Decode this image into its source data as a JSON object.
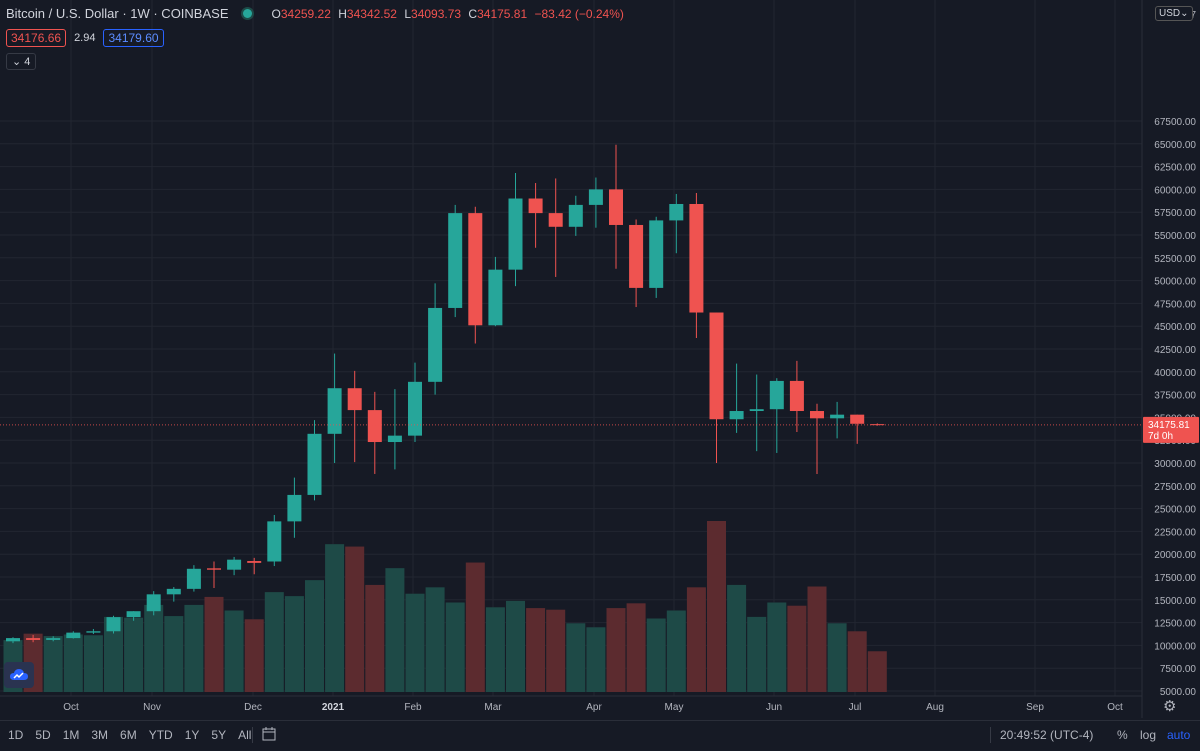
{
  "header": {
    "symbol": "Bitcoin / U.S. Dollar · 1W · COINBASE",
    "open_key": "O",
    "open": "34259.22",
    "high_key": "H",
    "high": "34342.52",
    "low_key": "L",
    "low": "34093.73",
    "close_key": "C",
    "close": "34175.81",
    "change": "−83.42 (−0.24%)"
  },
  "quote": {
    "bid": "34176.66",
    "spread": "2.94",
    "ask": "34179.60"
  },
  "indicators_toggle": "4",
  "currency": "USD",
  "last_price": {
    "value": "34175.81",
    "countdown": "7d 0h"
  },
  "bottom_bar": {
    "ranges": [
      "1D",
      "5D",
      "1M",
      "3M",
      "6M",
      "YTD",
      "1Y",
      "5Y",
      "All"
    ],
    "time": "20:49:52 (UTC-4)",
    "percent": "%",
    "log": "log",
    "auto": "auto"
  },
  "colors": {
    "up": "#26a69a",
    "down": "#ef5350",
    "vol_up": "#1e4a47",
    "vol_down": "#5c2b2f",
    "background": "#161a25",
    "grid": "#222631"
  },
  "chart_data": {
    "type": "candlestick",
    "title": "Bitcoin / U.S. Dollar",
    "interval": "1W",
    "exchange": "COINBASE",
    "price_axis": {
      "ticks": [
        "7",
        "67500.00",
        "65000.00",
        "62500.00",
        "60000.00",
        "57500.00",
        "55000.00",
        "52500.00",
        "50000.00",
        "47500.00",
        "45000.00",
        "42500.00",
        "40000.00",
        "37500.00",
        "35000.00",
        "32500.00",
        "30000.00",
        "27500.00",
        "25000.00",
        "22500.00",
        "20000.00",
        "17500.00",
        "15000.00",
        "12500.00",
        "10000.00",
        "7500.00",
        "5000.00"
      ]
    },
    "time_axis": [
      "Oct",
      "Nov",
      "Dec",
      "2021",
      "Feb",
      "Mar",
      "Apr",
      "May",
      "Jun",
      "Jul",
      "Aug",
      "Sep",
      "Oct"
    ],
    "candles": [
      {
        "o": 10450,
        "h": 10900,
        "l": 10250,
        "c": 10800,
        "v": 6500
      },
      {
        "o": 10800,
        "h": 11150,
        "l": 10350,
        "c": 10600,
        "v": 7300
      },
      {
        "o": 10600,
        "h": 11000,
        "l": 10450,
        "c": 10800,
        "v": 7000
      },
      {
        "o": 10800,
        "h": 11550,
        "l": 10750,
        "c": 11400,
        "v": 7200
      },
      {
        "o": 11400,
        "h": 11800,
        "l": 11250,
        "c": 11550,
        "v": 7100
      },
      {
        "o": 11550,
        "h": 13250,
        "l": 11300,
        "c": 13100,
        "v": 9400
      },
      {
        "o": 13100,
        "h": 13750,
        "l": 12700,
        "c": 13750,
        "v": 9300
      },
      {
        "o": 13750,
        "h": 15950,
        "l": 13300,
        "c": 15600,
        "v": 10900
      },
      {
        "o": 15600,
        "h": 16400,
        "l": 14800,
        "c": 16200,
        "v": 9500
      },
      {
        "o": 16200,
        "h": 18800,
        "l": 15900,
        "c": 18400,
        "v": 10900
      },
      {
        "o": 18450,
        "h": 19200,
        "l": 16300,
        "c": 18300,
        "v": 11900
      },
      {
        "o": 18300,
        "h": 19700,
        "l": 17700,
        "c": 19400,
        "v": 10200
      },
      {
        "o": 19250,
        "h": 19600,
        "l": 17800,
        "c": 19050,
        "v": 9100
      },
      {
        "o": 19200,
        "h": 24300,
        "l": 18700,
        "c": 23600,
        "v": 12500
      },
      {
        "o": 23600,
        "h": 28400,
        "l": 21800,
        "c": 26500,
        "v": 12000
      },
      {
        "o": 26500,
        "h": 34700,
        "l": 25900,
        "c": 33200,
        "v": 14000
      },
      {
        "o": 33200,
        "h": 42000,
        "l": 30000,
        "c": 38200,
        "v": 18500
      },
      {
        "o": 38200,
        "h": 40100,
        "l": 30100,
        "c": 35800,
        "v": 18200
      },
      {
        "o": 35800,
        "h": 37800,
        "l": 28800,
        "c": 32300,
        "v": 13400
      },
      {
        "o": 32300,
        "h": 38100,
        "l": 29300,
        "c": 33000,
        "v": 15500
      },
      {
        "o": 33000,
        "h": 41000,
        "l": 32300,
        "c": 38900,
        "v": 12300
      },
      {
        "o": 38900,
        "h": 49700,
        "l": 37500,
        "c": 47000,
        "v": 13100
      },
      {
        "o": 47000,
        "h": 58300,
        "l": 46000,
        "c": 57400,
        "v": 11200
      },
      {
        "o": 57400,
        "h": 58100,
        "l": 43100,
        "c": 45100,
        "v": 16200
      },
      {
        "o": 45100,
        "h": 52600,
        "l": 45000,
        "c": 51200,
        "v": 10600
      },
      {
        "o": 51200,
        "h": 61800,
        "l": 49400,
        "c": 59000,
        "v": 11400
      },
      {
        "o": 59000,
        "h": 60700,
        "l": 53600,
        "c": 57400,
        "v": 10500
      },
      {
        "o": 57400,
        "h": 61200,
        "l": 50400,
        "c": 55900,
        "v": 10300
      },
      {
        "o": 55900,
        "h": 59300,
        "l": 54900,
        "c": 58300,
        "v": 8600
      },
      {
        "o": 58300,
        "h": 61300,
        "l": 55800,
        "c": 60000,
        "v": 8100
      },
      {
        "o": 60000,
        "h": 64900,
        "l": 51300,
        "c": 56100,
        "v": 10500
      },
      {
        "o": 56100,
        "h": 56700,
        "l": 47100,
        "c": 49200,
        "v": 11100
      },
      {
        "o": 49200,
        "h": 57000,
        "l": 48100,
        "c": 56600,
        "v": 9200
      },
      {
        "o": 56600,
        "h": 59500,
        "l": 53000,
        "c": 58400,
        "v": 10200
      },
      {
        "o": 58400,
        "h": 59600,
        "l": 43700,
        "c": 46500,
        "v": 13100
      },
      {
        "o": 46500,
        "h": 46500,
        "l": 30000,
        "c": 34800,
        "v": 21400
      },
      {
        "o": 34800,
        "h": 40900,
        "l": 33300,
        "c": 35700,
        "v": 13400
      },
      {
        "o": 35700,
        "h": 39700,
        "l": 31300,
        "c": 35900,
        "v": 9400
      },
      {
        "o": 35900,
        "h": 39300,
        "l": 31100,
        "c": 39000,
        "v": 11200
      },
      {
        "o": 39000,
        "h": 41200,
        "l": 33400,
        "c": 35700,
        "v": 10800
      },
      {
        "o": 35700,
        "h": 36500,
        "l": 28800,
        "c": 34900,
        "v": 13200
      },
      {
        "o": 34900,
        "h": 36700,
        "l": 32700,
        "c": 35300,
        "v": 8600
      },
      {
        "o": 35300,
        "h": 35300,
        "l": 32100,
        "c": 34300,
        "v": 7600
      },
      {
        "o": 34259.22,
        "h": 34342.52,
        "l": 34093.73,
        "c": 34175.81,
        "v": 5100
      }
    ]
  }
}
